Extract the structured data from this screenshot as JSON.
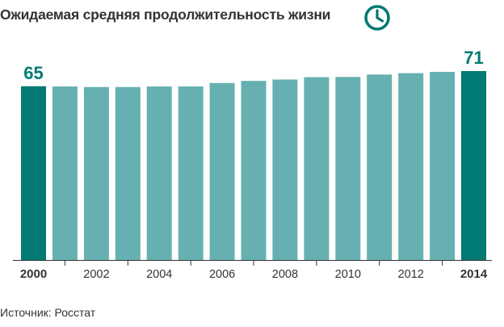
{
  "title": "Ожидаемая средняя продолжительность жизни",
  "source": "Источник: Росстат",
  "colors": {
    "bar": "#66b0b1",
    "highlight": "#007a73",
    "text": "#333333",
    "axis": "#333333"
  },
  "icon": "clock-icon",
  "chart_data": {
    "type": "bar",
    "title": "Ожидаемая средняя продолжительность жизни",
    "categories": [
      "2000",
      "2001",
      "2002",
      "2003",
      "2004",
      "2005",
      "2006",
      "2007",
      "2008",
      "2009",
      "2010",
      "2011",
      "2012",
      "2013",
      "2014"
    ],
    "values": [
      65.3,
      65.2,
      65.0,
      65.0,
      65.2,
      65.2,
      66.5,
      67.3,
      67.8,
      68.7,
      68.8,
      69.7,
      70.2,
      70.7,
      71.0
    ],
    "tick_labels": [
      "2000",
      "",
      "2002",
      "",
      "2004",
      "",
      "2006",
      "",
      "2008",
      "",
      "2010",
      "",
      "2012",
      "",
      "2014"
    ],
    "bold_ticks": [
      0,
      14
    ],
    "highlight": [
      0,
      14
    ],
    "data_labels": [
      {
        "index": 0,
        "text": "65"
      },
      {
        "index": 14,
        "text": "71"
      }
    ],
    "ylim": [
      0,
      71
    ],
    "grid": false,
    "xlabel": "",
    "ylabel": ""
  }
}
